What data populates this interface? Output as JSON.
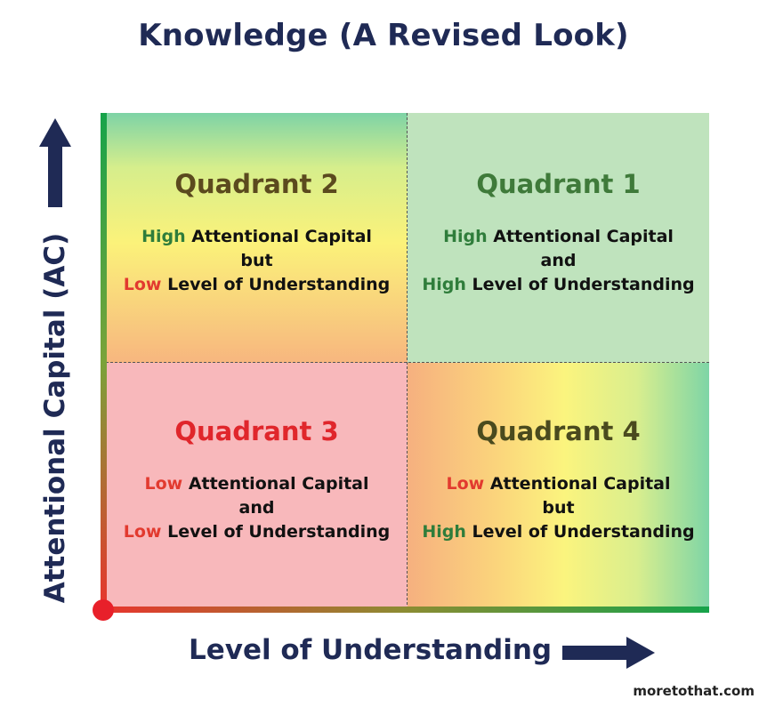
{
  "title": "Knowledge (A Revised Look)",
  "y_axis_label": "Attentional Capital (AC)",
  "x_axis_label": "Level of Understanding",
  "credit": "moretothat.com",
  "colors": {
    "high": "#2f7d3b",
    "low": "#e23a2f",
    "navy": "#1f2a55"
  },
  "quadrants": {
    "q1": {
      "title": "Quadrant 1",
      "l1_level": "High",
      "l1_rest": "Attentional Capital",
      "connector": "and",
      "l3_level": "High",
      "l3_rest": "Level of Understanding"
    },
    "q2": {
      "title": "Quadrant 2",
      "l1_level": "High",
      "l1_rest": "Attentional Capital",
      "connector": "but",
      "l3_level": "Low",
      "l3_rest": "Level of Understanding"
    },
    "q3": {
      "title": "Quadrant 3",
      "l1_level": "Low",
      "l1_rest": "Attentional Capital",
      "connector": "and",
      "l3_level": "Low",
      "l3_rest": "Level of Understanding"
    },
    "q4": {
      "title": "Quadrant 4",
      "l1_level": "Low",
      "l1_rest": "Attentional Capital",
      "connector": "but",
      "l3_level": "High",
      "l3_rest": "Level of Understanding"
    }
  }
}
